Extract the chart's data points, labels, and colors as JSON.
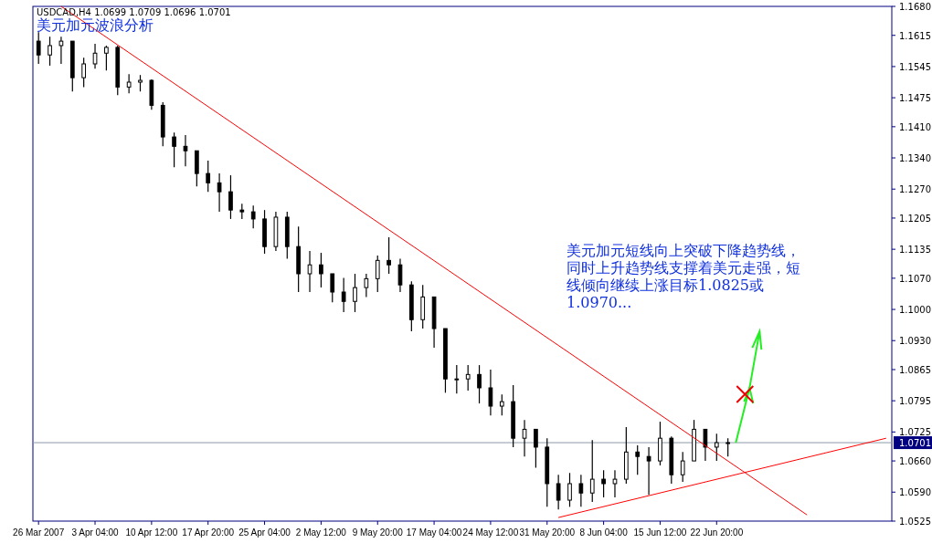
{
  "chart_data": {
    "type": "candlestick",
    "title": "美元加元波浪分析",
    "subtitle": "USDCAD,H4  1.0699 1.0709 1.0696 1.0701",
    "annotations": [
      "美元加元短线向上突破下降趋势线，",
      "同时上升趋势线支撑着美元走强，短",
      "线倾向继续上涨目标1.0825或",
      "1.0970..."
    ],
    "categories": [
      "26 Mar 2007",
      null,
      null,
      null,
      null,
      "3 Apr 04:00",
      null,
      null,
      null,
      null,
      "10 Apr 12:00",
      null,
      null,
      null,
      null,
      "17 Apr 20:00",
      null,
      null,
      null,
      null,
      "25 Apr 04:00",
      null,
      null,
      null,
      null,
      "2 May 12:00",
      null,
      null,
      null,
      null,
      "9 May 20:00",
      null,
      null,
      null,
      null,
      "17 May 04:00",
      null,
      null,
      null,
      null,
      "24 May 12:00",
      null,
      null,
      null,
      null,
      "31 May 20:00",
      null,
      null,
      null,
      null,
      "8 Jun 04:00",
      null,
      null,
      null,
      null,
      "15 Jun 12:00",
      null,
      null,
      null,
      null,
      "22 Jun 20:00",
      null,
      null,
      null,
      null,
      null,
      null,
      null,
      null,
      null,
      null,
      null,
      null,
      null,
      null,
      null
    ],
    "color": "#000000",
    "ohlc": [
      [
        1.1602,
        1.1622,
        1.1551,
        1.1571
      ],
      [
        1.1571,
        1.1612,
        1.1547,
        1.1592
      ],
      [
        1.1592,
        1.1612,
        1.1551,
        1.1602
      ],
      [
        1.1602,
        1.1602,
        1.1489,
        1.152
      ],
      [
        1.152,
        1.1565,
        1.1499,
        1.1551
      ],
      [
        1.1551,
        1.1596,
        1.154,
        1.1575
      ],
      [
        1.1575,
        1.1592,
        1.1536,
        1.1588
      ],
      [
        1.1588,
        1.1592,
        1.1481,
        1.1499
      ],
      [
        1.1499,
        1.1528,
        1.1485,
        1.151
      ],
      [
        1.151,
        1.1526,
        1.1489,
        1.1514
      ],
      [
        1.1514,
        1.1516,
        1.1448,
        1.1458
      ],
      [
        1.1458,
        1.1465,
        1.1366,
        1.1387
      ],
      [
        1.1387,
        1.1397,
        1.1319,
        1.1366
      ],
      [
        1.1366,
        1.1391,
        1.1321,
        1.1356
      ],
      [
        1.1356,
        1.1356,
        1.1276,
        1.1305
      ],
      [
        1.1305,
        1.1334,
        1.1264,
        1.1284
      ],
      [
        1.1284,
        1.1305,
        1.1219,
        1.1264
      ],
      [
        1.1264,
        1.1301,
        1.1203,
        1.1223
      ],
      [
        1.1223,
        1.1237,
        1.1203,
        1.1219
      ],
      [
        1.1219,
        1.1233,
        1.1182,
        1.1203
      ],
      [
        1.1203,
        1.1223,
        1.1125,
        1.1141
      ],
      [
        1.1141,
        1.1219,
        1.1131,
        1.1207
      ],
      [
        1.1207,
        1.1219,
        1.1114,
        1.1141
      ],
      [
        1.1141,
        1.1186,
        1.1039,
        1.108
      ],
      [
        1.108,
        1.1131,
        1.1039,
        1.11
      ],
      [
        1.11,
        1.1127,
        1.1049,
        1.108
      ],
      [
        1.108,
        1.108,
        1.1016,
        1.1039
      ],
      [
        1.1039,
        1.1071,
        1.0994,
        1.1018
      ],
      [
        1.1018,
        1.108,
        1.0994,
        1.1049
      ],
      [
        1.1049,
        1.108,
        1.1028,
        1.1069
      ],
      [
        1.1069,
        1.1121,
        1.1039,
        1.111
      ],
      [
        1.111,
        1.1162,
        1.108,
        1.11
      ],
      [
        1.11,
        1.1114,
        1.1039,
        1.1055
      ],
      [
        1.1055,
        1.1063,
        1.0951,
        1.0977
      ],
      [
        1.0977,
        1.1055,
        1.0957,
        1.1028
      ],
      [
        1.1028,
        1.1028,
        1.0914,
        1.0957
      ],
      [
        1.0957,
        1.0957,
        1.0813,
        1.0844
      ],
      [
        1.0844,
        1.0875,
        1.0811,
        1.0844
      ],
      [
        1.0844,
        1.0875,
        1.0818,
        1.0854
      ],
      [
        1.0854,
        1.0875,
        1.0789,
        1.0824
      ],
      [
        1.0824,
        1.0865,
        1.0762,
        1.0783
      ],
      [
        1.0783,
        1.0809,
        1.0762,
        1.0793
      ],
      [
        1.0793,
        1.083,
        1.0691,
        1.0711
      ],
      [
        1.0711,
        1.0752,
        1.067,
        1.0731
      ],
      [
        1.0731,
        1.0731,
        1.0645,
        1.0691
      ],
      [
        1.0691,
        1.0711,
        1.0557,
        1.0609
      ],
      [
        1.0609,
        1.0629,
        1.0551,
        1.0572
      ],
      [
        1.0572,
        1.0633,
        1.0557,
        1.0609
      ],
      [
        1.0609,
        1.0629,
        1.0557,
        1.0588
      ],
      [
        1.0588,
        1.0707,
        1.0568,
        1.0619
      ],
      [
        1.0619,
        1.0639,
        1.0578,
        1.0609
      ],
      [
        1.0609,
        1.0639,
        1.0578,
        1.0619
      ],
      [
        1.0619,
        1.0736,
        1.0609,
        1.068
      ],
      [
        1.068,
        1.0695,
        1.0629,
        1.067
      ],
      [
        1.067,
        1.0691,
        1.0584,
        1.066
      ],
      [
        1.066,
        1.0748,
        1.065,
        1.0711
      ],
      [
        1.0711,
        1.0715,
        1.0609,
        1.0629
      ],
      [
        1.0629,
        1.068,
        1.0613,
        1.066
      ],
      [
        1.066,
        1.0752,
        1.066,
        1.0731
      ],
      [
        1.0731,
        1.0731,
        1.066,
        1.0691
      ],
      [
        1.0691,
        1.0721,
        1.066,
        1.0701
      ],
      [
        1.0701,
        1.0711,
        1.067,
        1.0701
      ],
      null,
      null,
      null,
      null,
      null,
      null,
      null,
      null,
      null,
      null,
      null,
      null,
      null,
      null
    ],
    "series": [
      {
        "type": "line",
        "color": "#ff0000",
        "values": [
          null,
          null,
          1.168,
          null,
          null,
          null,
          null,
          null,
          null,
          null,
          null,
          null,
          null,
          null,
          null,
          null,
          null,
          null,
          null,
          null,
          null,
          null,
          null,
          null,
          null,
          null,
          null,
          null,
          null,
          null,
          null,
          null,
          null,
          null,
          null,
          null,
          null,
          null,
          null,
          null,
          null,
          null,
          null,
          null,
          null,
          null,
          null,
          null,
          null,
          null,
          null,
          null,
          null,
          null,
          null,
          null,
          null,
          null,
          null,
          null,
          null,
          null,
          null,
          null,
          null,
          null,
          null,
          null,
          1.0539,
          null,
          null,
          null,
          null,
          null,
          null,
          null
        ]
      },
      {
        "type": "line",
        "color": "#ff0000",
        "values": [
          null,
          null,
          null,
          null,
          null,
          null,
          null,
          null,
          null,
          null,
          null,
          null,
          null,
          null,
          null,
          null,
          null,
          null,
          null,
          null,
          null,
          null,
          null,
          null,
          null,
          null,
          null,
          null,
          null,
          null,
          null,
          null,
          null,
          null,
          null,
          null,
          null,
          null,
          null,
          null,
          null,
          null,
          null,
          null,
          null,
          null,
          1.0533,
          null,
          null,
          null,
          null,
          null,
          null,
          null,
          null,
          null,
          null,
          null,
          null,
          null,
          null,
          null,
          null,
          null,
          null,
          null,
          null,
          null,
          null,
          null,
          null,
          null,
          null,
          null,
          null,
          1.0711
        ]
      }
    ],
    "ylim": [
      1.0525,
      1.168
    ],
    "yticks": [
      {
        "value": 1.168,
        "label": "1.1680"
      },
      1.1615,
      1.1545,
      1.1475,
      {
        "value": 1.141,
        "label": "1.1410"
      },
      {
        "value": 1.134,
        "label": "1.1340"
      },
      {
        "value": 1.127,
        "label": "1.1270"
      },
      1.1205,
      1.1135,
      {
        "value": 1.107,
        "label": "1.1070"
      },
      {
        "value": 1.1,
        "label": "1.1000"
      },
      {
        "value": 1.093,
        "label": "1.0930"
      },
      1.0865,
      1.0795,
      1.0725,
      {
        "value": 1.066,
        "label": "1.0660"
      },
      {
        "value": 1.059,
        "label": "1.0590"
      },
      1.0525
    ],
    "ref_lines": [
      {
        "axis": "y",
        "value": 1.0701,
        "label": "1.0701",
        "color": "#8c9aa8"
      }
    ],
    "grid": false
  }
}
